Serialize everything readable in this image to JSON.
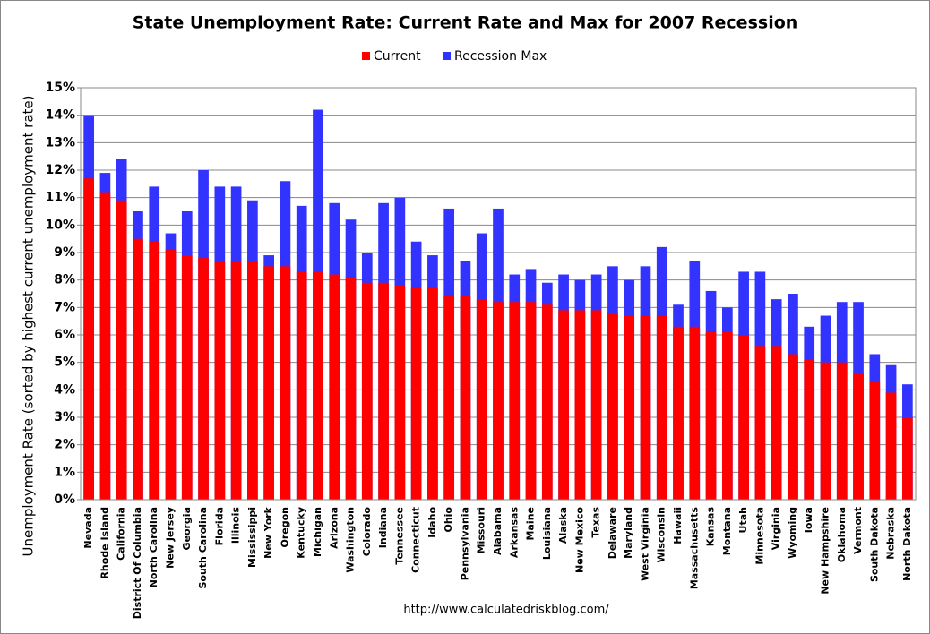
{
  "chart_data": {
    "type": "bar",
    "title": "State Unemployment Rate: Current Rate and Max for 2007 Recession",
    "y_label": "Unemployment Rate (sorted by highest current unemployment rate)",
    "source": "http://www.calculatedriskblog.com/",
    "categories": [
      "Nevada",
      "Rhode Island",
      "California",
      "District Of Columbia",
      "North Carolina",
      "New Jersey",
      "Georgia",
      "South Carolina",
      "Florida",
      "Illinois",
      "Mississippi",
      "New York",
      "Oregon",
      "Kentucky",
      "Michigan",
      "Arizona",
      "Washington",
      "Colorado",
      "Indiana",
      "Tennessee",
      "Connecticut",
      "Idaho",
      "Ohio",
      "Pennsylvania",
      "Missouri",
      "Alabama",
      "Arkansas",
      "Maine",
      "Louisiana",
      "Alaska",
      "New Mexico",
      "Texas",
      "Delaware",
      "Maryland",
      "West Virginia",
      "Wisconsin",
      "Hawaii",
      "Massachusetts",
      "Kansas",
      "Montana",
      "Utah",
      "Minnesota",
      "Virginia",
      "Wyoming",
      "Iowa",
      "New Hampshire",
      "Oklahoma",
      "Vermont",
      "South Dakota",
      "Nebraska",
      "North Dakota"
    ],
    "series": [
      {
        "name": "Current",
        "color": "#ff0000",
        "values": [
          11.7,
          11.2,
          10.9,
          9.5,
          9.4,
          9.1,
          8.9,
          8.8,
          8.7,
          8.7,
          8.7,
          8.5,
          8.5,
          8.3,
          8.3,
          8.2,
          8.1,
          7.9,
          7.9,
          7.8,
          7.7,
          7.7,
          7.4,
          7.4,
          7.3,
          7.2,
          7.2,
          7.2,
          7.1,
          6.9,
          6.9,
          6.9,
          6.8,
          6.7,
          6.7,
          6.7,
          6.3,
          6.3,
          6.1,
          6.1,
          6.0,
          5.6,
          5.6,
          5.3,
          5.1,
          5.0,
          5.0,
          4.6,
          4.3,
          3.9,
          3.0
        ]
      },
      {
        "name": "Recession Max",
        "color": "#3333ff",
        "values": [
          14.0,
          11.9,
          12.4,
          10.5,
          11.4,
          9.7,
          10.5,
          12.0,
          11.4,
          11.4,
          10.9,
          8.9,
          11.6,
          10.7,
          14.2,
          10.8,
          10.2,
          9.0,
          10.8,
          11.0,
          9.4,
          8.9,
          10.6,
          8.7,
          9.7,
          10.6,
          8.2,
          8.4,
          7.9,
          8.2,
          8.0,
          8.2,
          8.5,
          8.0,
          8.5,
          9.2,
          7.1,
          8.7,
          7.6,
          7.0,
          8.3,
          8.3,
          7.3,
          7.5,
          6.3,
          6.7,
          7.2,
          7.2,
          5.3,
          4.9,
          4.2
        ]
      }
    ],
    "ylim": [
      0,
      15
    ],
    "yticks": [
      {
        "value": 0,
        "label": "0%"
      },
      {
        "value": 1,
        "label": "1%"
      },
      {
        "value": 2,
        "label": "2%"
      },
      {
        "value": 3,
        "label": "3%"
      },
      {
        "value": 4,
        "label": "4%"
      },
      {
        "value": 5,
        "label": "5%"
      },
      {
        "value": 6,
        "label": "6%"
      },
      {
        "value": 7,
        "label": "7%"
      },
      {
        "value": 8,
        "label": "8%"
      },
      {
        "value": 9,
        "label": "9%"
      },
      {
        "value": 10,
        "label": "10%"
      },
      {
        "value": 11,
        "label": "11%"
      },
      {
        "value": 12,
        "label": "12%"
      },
      {
        "value": 13,
        "label": "13%"
      },
      {
        "value": 14,
        "label": "14%"
      },
      {
        "value": 15,
        "label": "15%"
      }
    ],
    "grid": true,
    "legend": "top"
  }
}
